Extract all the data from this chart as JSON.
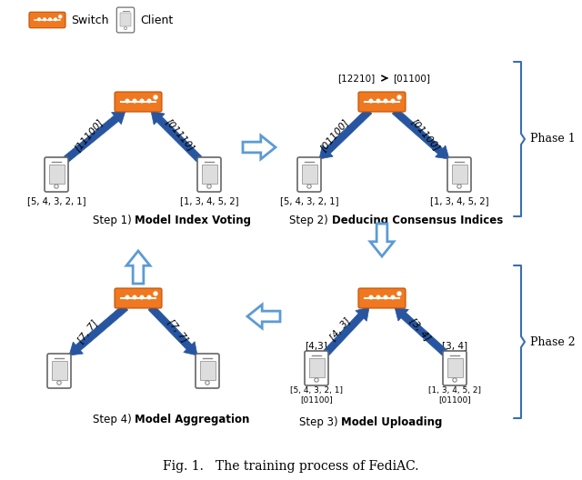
{
  "title": "Fig. 1.   The training process of FediAC.",
  "switch_color": "#F07820",
  "switch_label": "Switch",
  "client_label": "Client",
  "arrow_color": "#2755A0",
  "phase_color": "#3B6CB5",
  "bg": "#ffffff",
  "phase1_label": "Phase 1",
  "phase2_label": "Phase 2",
  "step1_label": "Step 1) ",
  "step1_bold": "Model Index Voting",
  "step2_label": "Step 2) ",
  "step2_bold": "Deducing Consensus Indices",
  "step3_label": "Step 3) ",
  "step3_bold": "Model Uploading",
  "step4_label": "Step 4) ",
  "step4_bold": "Model Aggregation"
}
